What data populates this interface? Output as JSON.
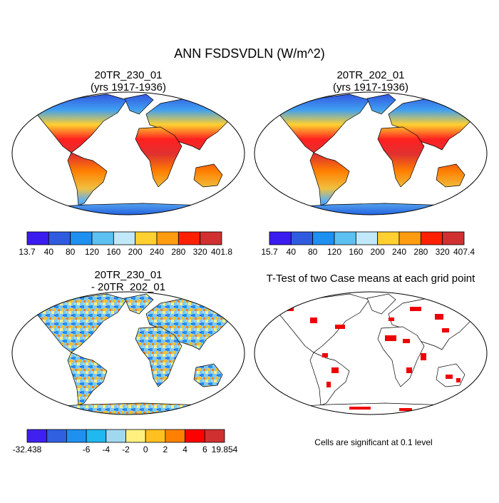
{
  "title": "ANN FSDSVDLN (W/m^2)",
  "panels": [
    {
      "title": [
        "20TR_230_01",
        "(yrs 1917-1936)"
      ],
      "colorbar": {
        "labels": [
          "13.7",
          "40",
          "80",
          "120",
          "160",
          "200",
          "240",
          "280",
          "320",
          "401.8"
        ],
        "colors": [
          "#3a1cf0",
          "#2f5be0",
          "#1e90f0",
          "#5cc0f0",
          "#c0e8f8",
          "#ffd030",
          "#ff9c10",
          "#ff2000",
          "#d03030"
        ]
      }
    },
    {
      "title": [
        "20TR_202_01",
        "(yrs 1917-1936)"
      ],
      "colorbar": {
        "labels": [
          "15.7",
          "40",
          "80",
          "120",
          "160",
          "200",
          "240",
          "280",
          "320",
          "407.4"
        ],
        "colors": [
          "#3a1cf0",
          "#2f5be0",
          "#1e90f0",
          "#5cc0f0",
          "#c0e8f8",
          "#ffd030",
          "#ff9c10",
          "#ff2000",
          "#d03030"
        ]
      }
    },
    {
      "title": [
        "20TR_230_01",
        "- 20TR_202_01"
      ],
      "colorbar": {
        "labels": [
          "-32.438",
          null,
          null,
          "-6",
          "-4",
          "-2",
          "0",
          "2",
          "4",
          "6",
          "19.854"
        ],
        "colors": [
          "#4020f0",
          "#3060e0",
          "#2090f0",
          "#20b8f0",
          "#a0d8f0",
          "#fff080",
          "#ffc020",
          "#ff8000",
          "#ff0000",
          "#d03030"
        ]
      }
    },
    {
      "title": [
        "T-Test of two Case means at each grid point"
      ],
      "note": "Cells are significant at 0.1 level"
    }
  ]
}
